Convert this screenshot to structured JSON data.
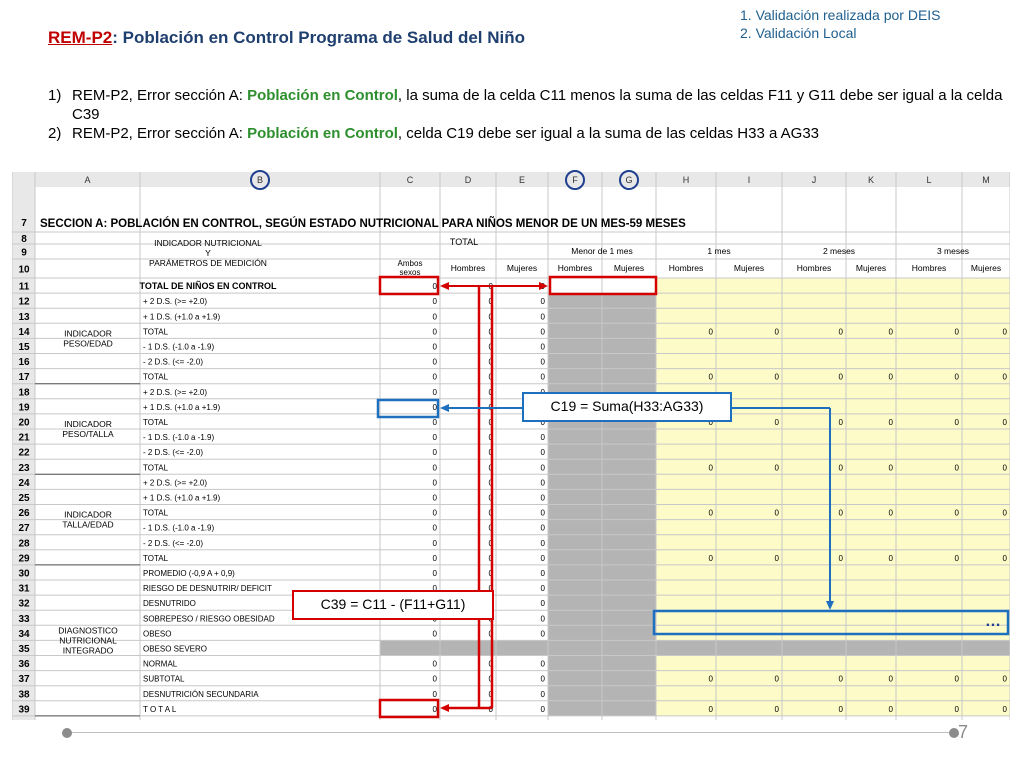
{
  "header": {
    "validation_1": "1. Validación realizada por DEIS",
    "validation_2": "2. Validación Local",
    "title_code": "REM-P2",
    "title_rest": ": Población en Control  Programa de Salud del Niño"
  },
  "errors": [
    {
      "num": "1)",
      "prefix": "REM-P2, Error sección A: ",
      "highlight": "Población en Control",
      "suffix": ", la suma de la celda C11 menos la suma de las celdas F11 y G11 debe ser igual a la celda C39"
    },
    {
      "num": "2)",
      "prefix": "REM-P2, Error sección A: ",
      "highlight": "Población en Control",
      "suffix": ", celda C19 debe ser igual a la suma de las celdas H33 a AG33"
    }
  ],
  "sheet": {
    "columns": [
      "A",
      "B",
      "C",
      "D",
      "E",
      "F",
      "G",
      "H",
      "I",
      "J",
      "K",
      "L",
      "M"
    ],
    "circled_columns": [
      "B",
      "F",
      "G"
    ],
    "section_title": "SECCION A: POBLACIÓN EN CONTROL, SEGÚN ESTADO NUTRICIONAL PARA NIÑOS MENOR DE UN MES-59 MESES",
    "header_indicator": "INDICADOR NUTRICIONAL\nY\nPARÁMETROS DE MEDICIÓN",
    "header_total": "TOTAL",
    "header_ages": [
      "Menor de 1 mes",
      "1 mes",
      "2 meses",
      "3 meses"
    ],
    "header_ambos": "Ambos sexos",
    "header_hombres": "Hombres",
    "header_mujeres": "Mujeres",
    "total_row_label": "TOTAL DE NIÑOS EN CONTROL",
    "groups": [
      {
        "label": "INDICADOR\nPESO/EDAD"
      },
      {
        "label": "INDICADOR\nPESO/TALLA"
      },
      {
        "label": "INDICADOR\nTALLA/EDAD"
      },
      {
        "label": "DIAGNOSTICO\nNUTRICIONAL\nINTEGRADO"
      }
    ],
    "rows": [
      {
        "n": "11",
        "label": "TOTAL DE NIÑOS EN CONTROL"
      },
      {
        "n": "12",
        "label": "+ 2 D.S. (>= +2.0)"
      },
      {
        "n": "13",
        "label": "+ 1 D.S. (+1.0 a +1.9)"
      },
      {
        "n": "14",
        "label": "TOTAL"
      },
      {
        "n": "15",
        "label": "- 1 D.S. (-1.0 a -1.9)"
      },
      {
        "n": "16",
        "label": "- 2 D.S. (<= -2.0)"
      },
      {
        "n": "17",
        "label": "TOTAL"
      },
      {
        "n": "18",
        "label": "+ 2 D.S. (>= +2.0)"
      },
      {
        "n": "19",
        "label": "+ 1 D.S. (+1.0 a +1.9)"
      },
      {
        "n": "20",
        "label": "TOTAL"
      },
      {
        "n": "21",
        "label": "- 1 D.S. (-1.0 a -1.9)"
      },
      {
        "n": "22",
        "label": "- 2 D.S. (<= -2.0)"
      },
      {
        "n": "23",
        "label": "TOTAL"
      },
      {
        "n": "24",
        "label": "+ 2 D.S. (>= +2.0)"
      },
      {
        "n": "25",
        "label": "+ 1 D.S. (+1.0 a +1.9)"
      },
      {
        "n": "26",
        "label": "TOTAL"
      },
      {
        "n": "27",
        "label": "- 1 D.S. (-1.0 a -1.9)"
      },
      {
        "n": "28",
        "label": "- 2 D.S. (<= -2.0)"
      },
      {
        "n": "29",
        "label": "TOTAL"
      },
      {
        "n": "30",
        "label": "PROMEDIO (-0,9 A + 0,9)"
      },
      {
        "n": "31",
        "label": "RIESGO DE DESNUTRIR/ DEFICIT"
      },
      {
        "n": "32",
        "label": "DESNUTRIDO"
      },
      {
        "n": "33",
        "label": "SOBREPESO / RIESGO OBESIDAD"
      },
      {
        "n": "34",
        "label": "OBESO"
      },
      {
        "n": "35",
        "label": "OBESO SEVERO"
      },
      {
        "n": "36",
        "label": "NORMAL"
      },
      {
        "n": "37",
        "label": "SUBTOTAL"
      },
      {
        "n": "38",
        "label": "DESNUTRICIÓN SECUNDARIA"
      },
      {
        "n": "39",
        "label": "T O T A L"
      }
    ],
    "zero": "0"
  },
  "annotations": {
    "blue_callout": "C19 =  Suma(H33:AG33)",
    "red_callout": "C39 = C11 - (F11+G11)",
    "ellipsis": "…",
    "colors": {
      "red": "#d40000",
      "blue": "#1f6fbf",
      "yellow": "#fdfbc8",
      "gray": "#b4b4b4",
      "green": "#2d8f2d"
    }
  },
  "footer": {
    "page": "7"
  }
}
